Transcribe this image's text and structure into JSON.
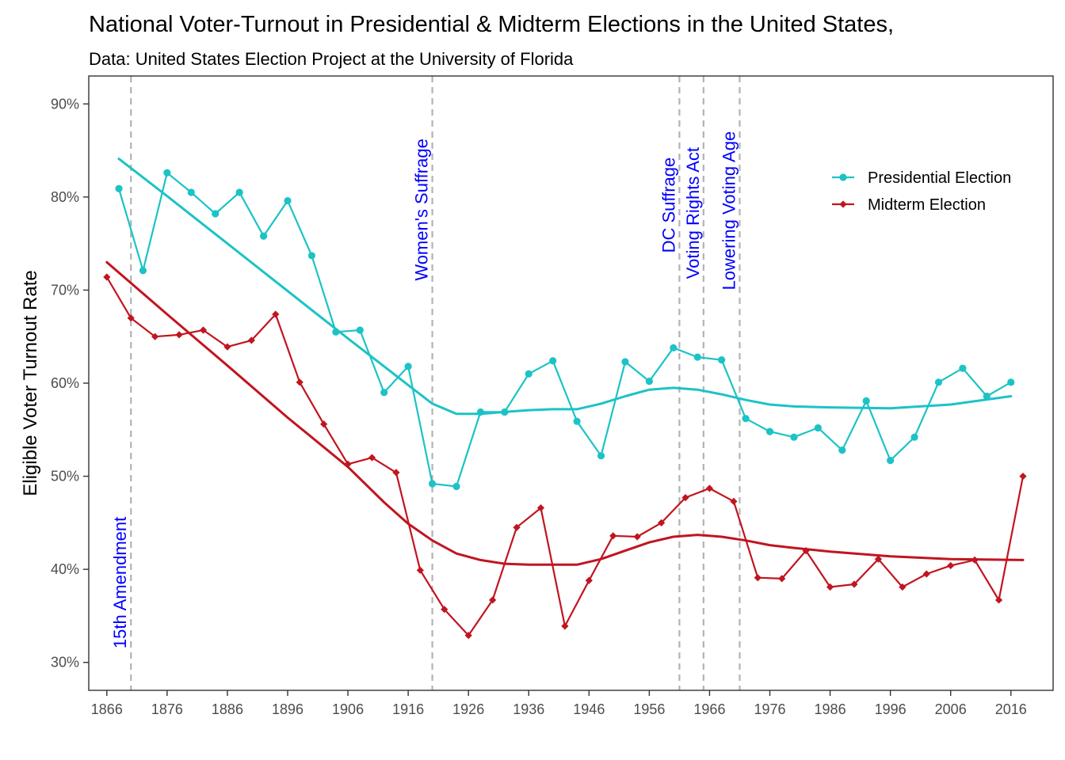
{
  "chart_data": {
    "type": "line",
    "title": "National Voter-Turnout in Presidential & Midterm Elections in the United States,",
    "subtitle": "Data: United States Election Project at the University of Florida",
    "ylabel": "Eligible Voter Turnout Rate",
    "xlabel": "",
    "xlim": [
      1863,
      2023
    ],
    "ylim": [
      27,
      93
    ],
    "x_ticks": [
      1866,
      1876,
      1886,
      1896,
      1906,
      1916,
      1926,
      1936,
      1946,
      1956,
      1966,
      1976,
      1986,
      1996,
      2006,
      2016
    ],
    "y_ticks": [
      30,
      40,
      50,
      60,
      70,
      80,
      90
    ],
    "y_tick_labels": [
      "30%",
      "40%",
      "50%",
      "60%",
      "70%",
      "80%",
      "90%"
    ],
    "grid": false,
    "legend_position": "top-right",
    "series": [
      {
        "name": "Presidential Election",
        "color": "#1cc3c6",
        "marker": "circle",
        "x": [
          1868,
          1872,
          1876,
          1880,
          1884,
          1888,
          1892,
          1896,
          1900,
          1904,
          1908,
          1912,
          1916,
          1920,
          1924,
          1928,
          1932,
          1936,
          1940,
          1944,
          1948,
          1952,
          1956,
          1960,
          1964,
          1968,
          1972,
          1976,
          1980,
          1984,
          1988,
          1992,
          1996,
          2000,
          2004,
          2008,
          2012,
          2016
        ],
        "y": [
          80.9,
          72.1,
          82.6,
          80.5,
          78.2,
          80.5,
          75.8,
          79.6,
          73.7,
          65.5,
          65.7,
          59.0,
          61.8,
          49.2,
          48.9,
          56.9,
          56.9,
          61.0,
          62.4,
          55.9,
          52.2,
          62.3,
          60.2,
          63.8,
          62.8,
          62.5,
          56.2,
          54.8,
          54.2,
          55.2,
          52.8,
          58.1,
          51.7,
          54.2,
          60.1,
          61.6,
          58.6,
          60.1
        ]
      },
      {
        "name": "Midterm Election",
        "color": "#c11520",
        "marker": "diamond",
        "x": [
          1866,
          1870,
          1874,
          1878,
          1882,
          1886,
          1890,
          1894,
          1898,
          1902,
          1906,
          1910,
          1914,
          1918,
          1922,
          1926,
          1930,
          1934,
          1938,
          1942,
          1946,
          1950,
          1954,
          1958,
          1962,
          1966,
          1970,
          1974,
          1978,
          1982,
          1986,
          1990,
          1994,
          1998,
          2002,
          2006,
          2010,
          2014,
          2018
        ],
        "y": [
          71.4,
          67.0,
          65.0,
          65.2,
          65.7,
          63.9,
          64.6,
          67.4,
          60.1,
          55.6,
          51.3,
          52.0,
          50.4,
          39.9,
          35.7,
          32.9,
          36.7,
          44.5,
          46.6,
          33.9,
          38.8,
          43.6,
          43.5,
          45.0,
          47.7,
          48.7,
          47.3,
          39.1,
          39.0,
          42.0,
          38.1,
          38.4,
          41.1,
          38.1,
          39.5,
          40.4,
          41.0,
          36.7,
          50.0
        ]
      }
    ],
    "smooth_series": [
      {
        "name": "Presidential trend",
        "color": "#1cc3c6",
        "x": [
          1868,
          1876,
          1886,
          1896,
          1906,
          1912,
          1916,
          1920,
          1924,
          1928,
          1932,
          1936,
          1940,
          1944,
          1948,
          1952,
          1956,
          1960,
          1964,
          1968,
          1972,
          1976,
          1980,
          1986,
          1996,
          2006,
          2016
        ],
        "y": [
          84.1,
          80.1,
          75.0,
          69.9,
          64.8,
          61.8,
          59.8,
          57.8,
          56.7,
          56.7,
          56.9,
          57.1,
          57.2,
          57.2,
          57.8,
          58.6,
          59.3,
          59.5,
          59.3,
          58.8,
          58.2,
          57.7,
          57.5,
          57.4,
          57.3,
          57.7,
          58.6
        ]
      },
      {
        "name": "Midterm trend",
        "color": "#c11520",
        "x": [
          1866,
          1876,
          1886,
          1896,
          1906,
          1912,
          1916,
          1920,
          1924,
          1928,
          1932,
          1936,
          1940,
          1944,
          1948,
          1952,
          1956,
          1960,
          1964,
          1968,
          1972,
          1976,
          1980,
          1986,
          1996,
          2006,
          2018
        ],
        "y": [
          73.0,
          67.4,
          61.9,
          56.3,
          51.0,
          47.2,
          44.9,
          43.1,
          41.7,
          41.0,
          40.6,
          40.5,
          40.5,
          40.5,
          41.1,
          42.0,
          42.9,
          43.5,
          43.7,
          43.5,
          43.1,
          42.6,
          42.3,
          41.9,
          41.4,
          41.1,
          41.0
        ]
      }
    ],
    "annotations": [
      {
        "label": "15th Amendment",
        "x": 1870,
        "label_y": 31.5
      },
      {
        "label": "Women's Suffrage",
        "x": 1920,
        "label_y": 71.0
      },
      {
        "label": "DC Suffrage",
        "x": 1961,
        "label_y": 74.0
      },
      {
        "label": "Voting Rights Act",
        "x": 1965,
        "label_y": 71.2
      },
      {
        "label": "Lowering Voting Age",
        "x": 1971,
        "label_y": 70.0
      }
    ],
    "annotation_color": "#0000ff",
    "vline_color": "#b3b3b3"
  }
}
